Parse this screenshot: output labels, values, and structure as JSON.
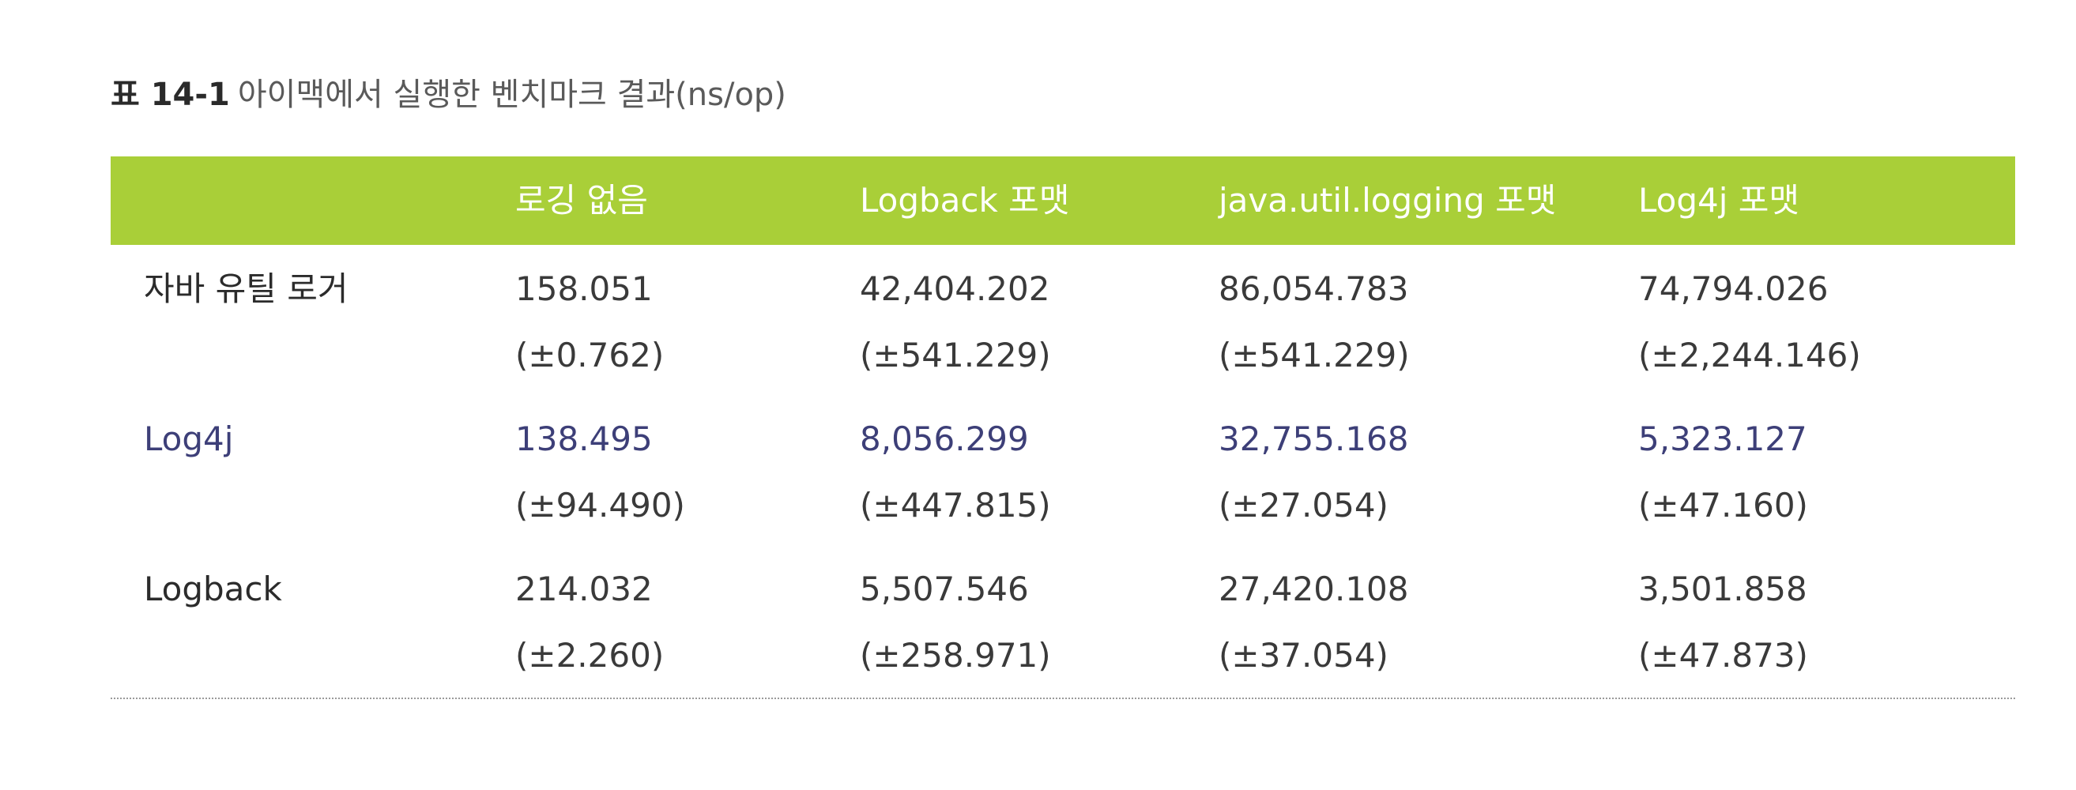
{
  "caption": {
    "label": "표 14-1",
    "text": "아이맥에서 실행한 벤치마크 결과(ns/op)"
  },
  "colors": {
    "header_bg": "#a9cf38",
    "header_text": "#ffffff"
  },
  "table": {
    "columns": [
      "",
      "로깅 없음",
      "Logback 포맷",
      "java.util.logging 포맷",
      "Log4j 포맷"
    ],
    "rows": [
      {
        "label": "자바 유틸 로거",
        "cells": [
          {
            "value": "158.051",
            "err": "(±0.762)"
          },
          {
            "value": "42,404.202",
            "err": "(±541.229)"
          },
          {
            "value": "86,054.783",
            "err": "(±541.229)"
          },
          {
            "value": "74,794.026",
            "err": "(±2,244.146)"
          }
        ]
      },
      {
        "label": "Log4j",
        "cells": [
          {
            "value": "138.495",
            "err": "(±94.490)"
          },
          {
            "value": "8,056.299",
            "err": "(±447.815)"
          },
          {
            "value": "32,755.168",
            "err": "(±27.054)"
          },
          {
            "value": "5,323.127",
            "err": "(±47.160)"
          }
        ]
      },
      {
        "label": "Logback",
        "cells": [
          {
            "value": "214.032",
            "err": "(±2.260)"
          },
          {
            "value": "5,507.546",
            "err": "(±258.971)"
          },
          {
            "value": "27,420.108",
            "err": "(±37.054)"
          },
          {
            "value": "3,501.858",
            "err": "(±47.873)"
          }
        ]
      }
    ]
  }
}
